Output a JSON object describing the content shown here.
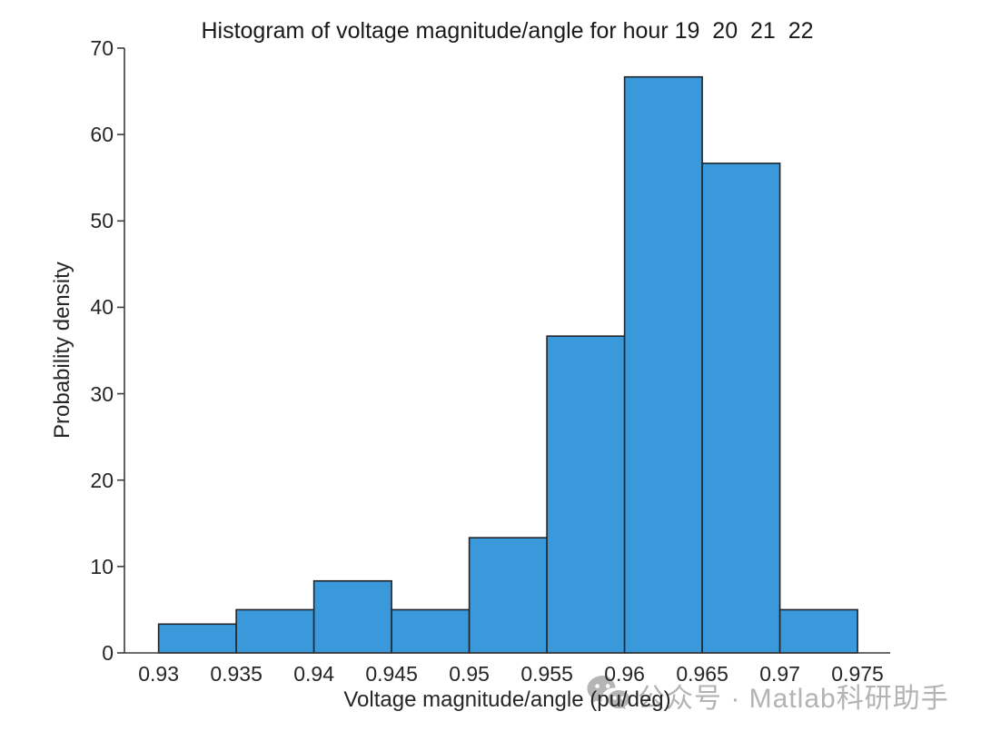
{
  "figure": {
    "background": "#ffffff",
    "watermark": {
      "icon": "wechat-logo",
      "text": "公众号 · Matlab科研助手",
      "color": "#b3b3b3"
    }
  },
  "chart_data": {
    "type": "bar",
    "subtype": "histogram",
    "title": "Histogram of voltage magnitude/angle for hour 19  20  21  22",
    "xlabel": "Voltage magnitude/angle (pu/deg)",
    "ylabel": "Probability density",
    "bin_edges": [
      0.93,
      0.935,
      0.94,
      0.945,
      0.95,
      0.955,
      0.96,
      0.965,
      0.97,
      0.975
    ],
    "values": [
      3.333,
      5,
      8.333,
      5,
      13.333,
      36.667,
      66.667,
      56.667,
      5
    ],
    "xlim": [
      0.9278,
      0.9771
    ],
    "ylim": [
      0,
      70
    ],
    "xticks": [
      0.93,
      0.935,
      0.94,
      0.945,
      0.95,
      0.955,
      0.96,
      0.965,
      0.97,
      0.975
    ],
    "xtick_labels": [
      "0.93",
      "0.935",
      "0.94",
      "0.945",
      "0.95",
      "0.955",
      "0.96",
      "0.965",
      "0.97",
      "0.975"
    ],
    "yticks": [
      0,
      10,
      20,
      30,
      40,
      50,
      60,
      70
    ],
    "ytick_labels": [
      "0",
      "10",
      "20",
      "30",
      "40",
      "50",
      "60",
      "70"
    ],
    "grid": false,
    "legend": null,
    "bar_color": "#3999db",
    "bar_edge_color": "#20252b",
    "axis_color": "#3a3a3a",
    "text_color": "#262626",
    "title_color": "#1a1a1a"
  }
}
